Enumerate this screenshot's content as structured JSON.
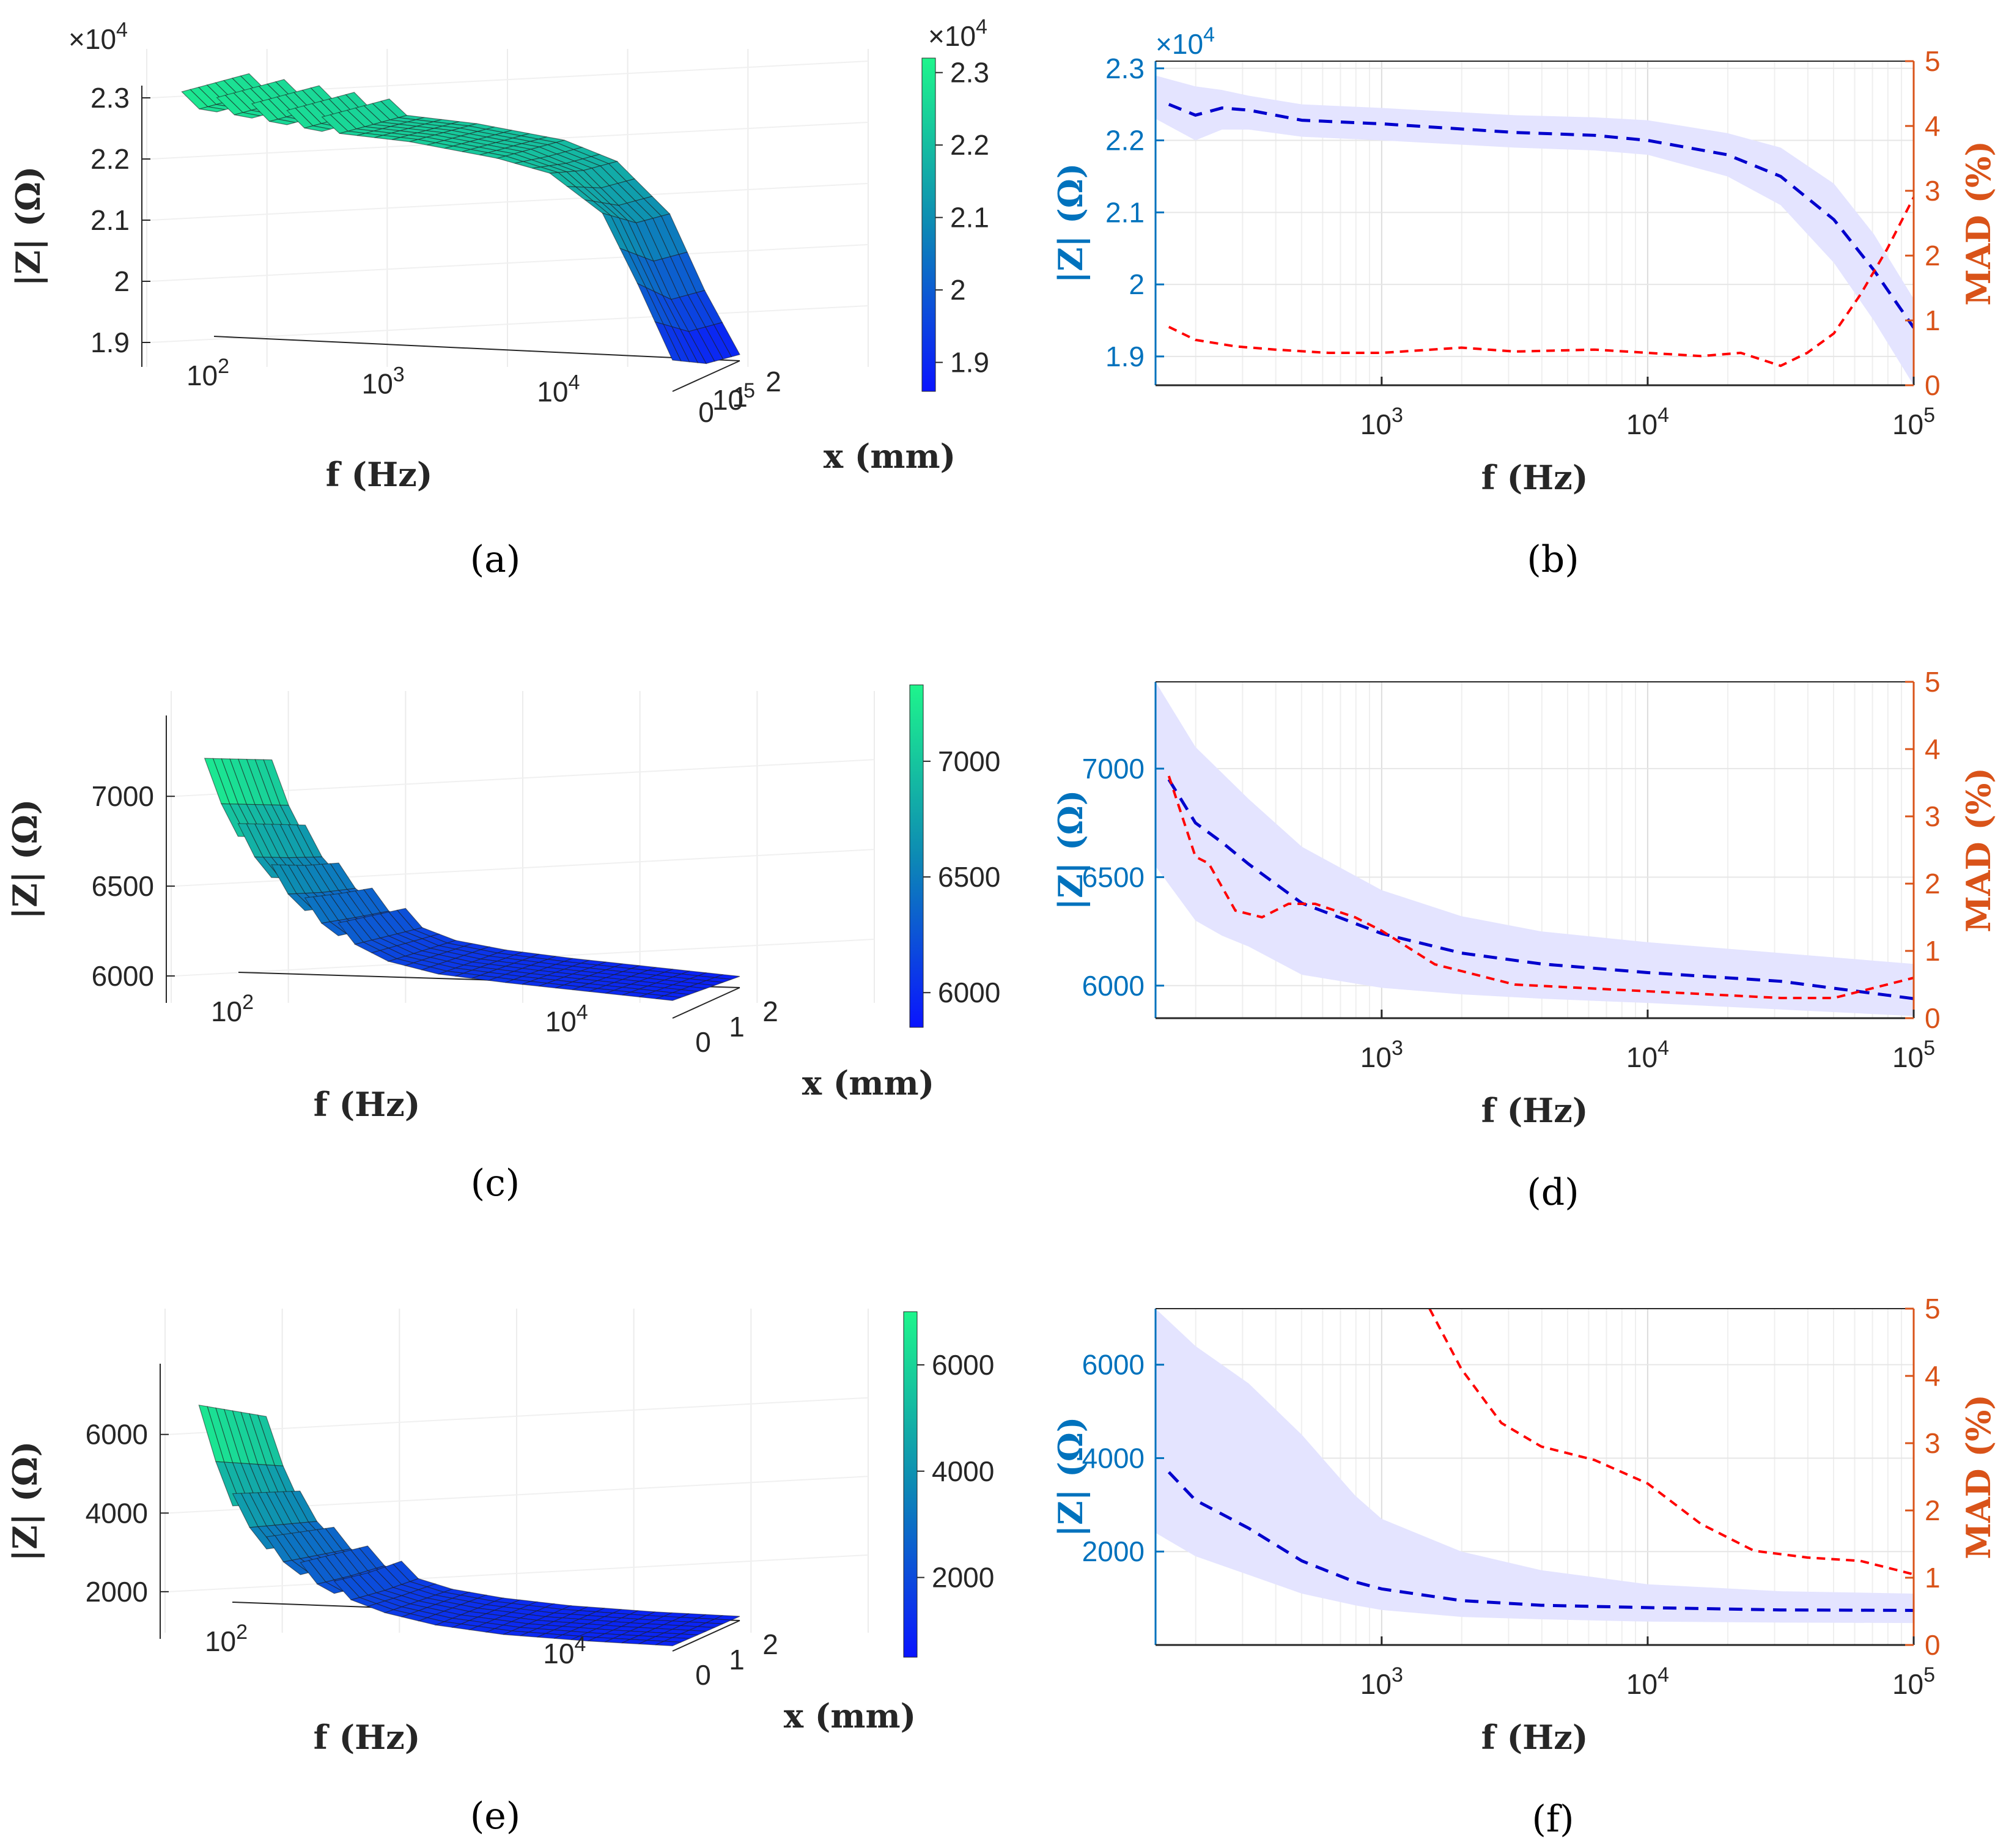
{
  "chart_data": [
    {
      "id": "a",
      "type": "surface",
      "panel_label": "(a)",
      "xlabel": "f (Hz)",
      "ylabel": "x (mm)",
      "zlabel": "|Z| (Ω)",
      "z_exponent": "×10^4",
      "x_ticks": [
        "10^2",
        "10^3",
        "10^4",
        "10^5"
      ],
      "y_ticks": [
        "0",
        "1",
        "2"
      ],
      "z_ticks": [
        "1.9",
        "2",
        "2.1",
        "2.2",
        "2.3"
      ],
      "zlim": [
        1.86,
        2.32
      ],
      "colorbar": {
        "ticks": [
          "1.9",
          "2",
          "2.1",
          "2.2",
          "2.3"
        ],
        "exponent": "×10^4",
        "range": [
          1.86,
          2.32
        ]
      },
      "profiles": [
        {
          "x_mm": 0,
          "logf": [
            2.2,
            2.5,
            3,
            3.5,
            4,
            4.3,
            4.6,
            4.8,
            5
          ],
          "z": [
            2.28,
            2.27,
            2.25,
            2.24,
            2.22,
            2.2,
            2.14,
            2.03,
            1.91
          ]
        },
        {
          "x_mm": 1,
          "logf": [
            2.2,
            2.5,
            3,
            3.5,
            4,
            4.3,
            4.6,
            4.8,
            5
          ],
          "z": [
            2.27,
            2.26,
            2.24,
            2.23,
            2.21,
            2.18,
            2.1,
            1.98,
            1.88
          ]
        },
        {
          "x_mm": 2,
          "logf": [
            2.2,
            2.5,
            3,
            3.5,
            4,
            4.3,
            4.6,
            4.8,
            5
          ],
          "z": [
            2.26,
            2.25,
            2.23,
            2.22,
            2.2,
            2.17,
            2.09,
            1.97,
            1.87
          ]
        }
      ]
    },
    {
      "id": "b",
      "type": "line",
      "panel_label": "(b)",
      "xlabel": "f (Hz)",
      "ylabel_left": "|Z| (Ω)",
      "ylabel_right": "MAD (%)",
      "y_exponent": "×10^4",
      "x_ticks": [
        "10^3",
        "10^4",
        "10^5"
      ],
      "y_ticks_left": [
        "1.9",
        "2",
        "2.1",
        "2.2",
        "2.3"
      ],
      "y_ticks_right": [
        "0",
        "1",
        "2",
        "3",
        "4",
        "5"
      ],
      "xlim_log10": [
        2.15,
        5
      ],
      "ylim_left": [
        1.86,
        2.31
      ],
      "ylim_right": [
        0,
        5
      ],
      "series": [
        {
          "name": "mean |Z|",
          "axis": "left",
          "style": "dashed",
          "color": "#0000cd",
          "logf": [
            2.2,
            2.3,
            2.4,
            2.5,
            2.7,
            3,
            3.5,
            3.8,
            4,
            4.3,
            4.5,
            4.7,
            4.85,
            5
          ],
          "values": [
            2.25,
            2.235,
            2.245,
            2.242,
            2.228,
            2.223,
            2.211,
            2.207,
            2.2,
            2.18,
            2.15,
            2.09,
            2.02,
            1.94
          ]
        },
        {
          "name": "|Z| band upper",
          "axis": "left",
          "style": "band",
          "color": "#e5e5ff",
          "logf": [
            2.15,
            2.3,
            2.4,
            2.5,
            2.7,
            3,
            3.5,
            3.8,
            4,
            4.3,
            4.5,
            4.7,
            4.85,
            5
          ],
          "values": [
            2.29,
            2.275,
            2.27,
            2.262,
            2.25,
            2.245,
            2.235,
            2.232,
            2.228,
            2.21,
            2.19,
            2.14,
            2.07,
            1.98
          ]
        },
        {
          "name": "|Z| band lower",
          "axis": "left",
          "style": "band",
          "color": "#e5e5ff",
          "logf": [
            2.15,
            2.3,
            2.4,
            2.5,
            2.7,
            3,
            3.5,
            3.8,
            4,
            4.3,
            4.5,
            4.7,
            4.85,
            5
          ],
          "values": [
            2.23,
            2.2,
            2.215,
            2.215,
            2.205,
            2.2,
            2.19,
            2.186,
            2.18,
            2.15,
            2.11,
            2.03,
            1.95,
            1.86
          ]
        },
        {
          "name": "MAD",
          "axis": "right",
          "style": "dashed",
          "color": "#ff0000",
          "logf": [
            2.2,
            2.3,
            2.45,
            2.6,
            2.8,
            3,
            3.3,
            3.5,
            3.8,
            4,
            4.2,
            4.35,
            4.5,
            4.6,
            4.7,
            4.8,
            4.9,
            5
          ],
          "values": [
            0.9,
            0.7,
            0.6,
            0.55,
            0.5,
            0.5,
            0.58,
            0.52,
            0.55,
            0.5,
            0.45,
            0.5,
            0.3,
            0.5,
            0.8,
            1.4,
            2.1,
            2.9
          ]
        }
      ]
    },
    {
      "id": "c",
      "type": "surface",
      "panel_label": "(c)",
      "xlabel": "f (Hz)",
      "ylabel": "x (mm)",
      "zlabel": "|Z| (Ω)",
      "x_ticks": [
        "10^2",
        "10^4"
      ],
      "y_ticks": [
        "0",
        "1",
        "2"
      ],
      "z_ticks": [
        "6000",
        "6500",
        "7000"
      ],
      "zlim": [
        5850,
        7450
      ],
      "colorbar": {
        "ticks": [
          "6000",
          "6500",
          "7000"
        ],
        "range": [
          5850,
          7330
        ]
      },
      "profiles": [
        {
          "x_mm": 0,
          "logf": [
            2.2,
            2.4,
            2.6,
            2.8,
            3,
            3.3,
            3.6,
            4,
            4.5,
            5
          ],
          "z": [
            7300,
            6900,
            6650,
            6450,
            6300,
            6150,
            6080,
            6040,
            6000,
            5960
          ]
        },
        {
          "x_mm": 1,
          "logf": [
            2.2,
            2.4,
            2.6,
            2.8,
            3,
            3.3,
            3.6,
            4,
            4.5,
            5
          ],
          "z": [
            7200,
            6800,
            6550,
            6380,
            6250,
            6120,
            6060,
            6020,
            5980,
            5940
          ]
        },
        {
          "x_mm": 2,
          "logf": [
            2.2,
            2.4,
            2.6,
            2.8,
            3,
            3.3,
            3.6,
            4,
            4.5,
            5
          ],
          "z": [
            7100,
            6700,
            6470,
            6320,
            6200,
            6090,
            6040,
            6000,
            5960,
            5920
          ]
        }
      ]
    },
    {
      "id": "d",
      "type": "line",
      "panel_label": "(d)",
      "xlabel": "f (Hz)",
      "ylabel_left": "|Z| (Ω)",
      "ylabel_right": "MAD (%)",
      "x_ticks": [
        "10^3",
        "10^4",
        "10^5"
      ],
      "y_ticks_left": [
        "6000",
        "6500",
        "7000"
      ],
      "y_ticks_right": [
        "0",
        "1",
        "2",
        "3",
        "4",
        "5"
      ],
      "xlim_log10": [
        2.15,
        5
      ],
      "ylim_left": [
        5850,
        7400
      ],
      "ylim_right": [
        0,
        5
      ],
      "series": [
        {
          "name": "mean |Z|",
          "axis": "left",
          "style": "dashed",
          "color": "#0000cd",
          "logf": [
            2.2,
            2.3,
            2.4,
            2.5,
            2.7,
            3,
            3.3,
            3.6,
            4,
            4.5,
            5
          ],
          "values": [
            6950,
            6750,
            6660,
            6560,
            6380,
            6240,
            6150,
            6100,
            6060,
            6020,
            5940
          ]
        },
        {
          "name": "|Z| band upper",
          "axis": "left",
          "style": "band",
          "color": "#e5e5ff",
          "logf": [
            2.15,
            2.3,
            2.4,
            2.5,
            2.7,
            3,
            3.3,
            3.6,
            4,
            4.5,
            5
          ],
          "values": [
            7400,
            7100,
            6980,
            6860,
            6640,
            6440,
            6320,
            6250,
            6200,
            6150,
            6100
          ]
        },
        {
          "name": "|Z| band lower",
          "axis": "left",
          "style": "band",
          "color": "#e5e5ff",
          "logf": [
            2.15,
            2.3,
            2.4,
            2.5,
            2.7,
            3,
            3.3,
            3.6,
            4,
            4.5,
            5
          ],
          "values": [
            6550,
            6300,
            6230,
            6180,
            6050,
            5990,
            5960,
            5940,
            5920,
            5890,
            5860
          ]
        },
        {
          "name": "MAD",
          "axis": "right",
          "style": "dashed",
          "color": "#ff0000",
          "logf": [
            2.2,
            2.3,
            2.35,
            2.45,
            2.55,
            2.65,
            2.75,
            2.9,
            3,
            3.2,
            3.5,
            4,
            4.5,
            4.7,
            5
          ],
          "values": [
            3.6,
            2.4,
            2.3,
            1.6,
            1.5,
            1.7,
            1.7,
            1.5,
            1.3,
            0.8,
            0.5,
            0.4,
            0.3,
            0.3,
            0.6
          ]
        }
      ]
    },
    {
      "id": "e",
      "type": "surface",
      "panel_label": "(e)",
      "xlabel": "f (Hz)",
      "ylabel": "x (mm)",
      "zlabel": "|Z| (Ω)",
      "x_ticks": [
        "10^2",
        "10^4"
      ],
      "y_ticks": [
        "0",
        "1",
        "2"
      ],
      "z_ticks": [
        "2000",
        "4000",
        "6000"
      ],
      "zlim": [
        800,
        7800
      ],
      "colorbar": {
        "ticks": [
          "2000",
          "4000",
          "6000"
        ],
        "range": [
          500,
          7000
        ]
      },
      "profiles": [
        {
          "x_mm": 0,
          "logf": [
            2.2,
            2.4,
            2.6,
            2.8,
            3,
            3.3,
            3.6,
            4,
            4.5,
            5
          ],
          "z": [
            7000,
            4500,
            3300,
            2600,
            2100,
            1600,
            1300,
            1100,
            1000,
            950
          ]
        },
        {
          "x_mm": 1,
          "logf": [
            2.2,
            2.4,
            2.6,
            2.8,
            3,
            3.3,
            3.6,
            4,
            4.5,
            5
          ],
          "z": [
            6400,
            4100,
            3000,
            2400,
            1900,
            1500,
            1250,
            1070,
            980,
            930
          ]
        },
        {
          "x_mm": 2,
          "logf": [
            2.2,
            2.4,
            2.6,
            2.8,
            3,
            3.3,
            3.6,
            4,
            4.5,
            5
          ],
          "z": [
            5800,
            3700,
            2700,
            2200,
            1800,
            1400,
            1200,
            1050,
            960,
            920
          ]
        }
      ]
    },
    {
      "id": "f",
      "type": "line",
      "panel_label": "(f)",
      "xlabel": "f (Hz)",
      "ylabel_left": "|Z| (Ω)",
      "ylabel_right": "MAD (%)",
      "x_ticks": [
        "10^3",
        "10^4",
        "10^5"
      ],
      "y_ticks_left": [
        "2000",
        "4000",
        "6000"
      ],
      "y_ticks_right": [
        "0",
        "1",
        "2",
        "3",
        "4",
        "5"
      ],
      "xlim_log10": [
        2.15,
        5
      ],
      "ylim_left": [
        0,
        7200
      ],
      "ylim_right": [
        0,
        5
      ],
      "series": [
        {
          "name": "mean |Z|",
          "axis": "left",
          "style": "dashed",
          "color": "#0000cd",
          "logf": [
            2.2,
            2.3,
            2.5,
            2.7,
            2.9,
            3,
            3.3,
            3.6,
            4,
            4.5,
            5
          ],
          "values": [
            3700,
            3100,
            2500,
            1800,
            1350,
            1200,
            950,
            850,
            800,
            750,
            740
          ]
        },
        {
          "name": "|Z| band upper",
          "axis": "left",
          "style": "band",
          "color": "#e5e5ff",
          "logf": [
            2.15,
            2.3,
            2.5,
            2.7,
            2.9,
            3,
            3.3,
            3.6,
            4,
            4.5,
            5
          ],
          "values": [
            7200,
            6400,
            5600,
            4500,
            3200,
            2700,
            2000,
            1600,
            1300,
            1150,
            1100
          ]
        },
        {
          "name": "|Z| band lower",
          "axis": "left",
          "style": "band",
          "color": "#e5e5ff",
          "logf": [
            2.15,
            2.3,
            2.5,
            2.7,
            2.9,
            3,
            3.3,
            3.6,
            4,
            4.5,
            5
          ],
          "values": [
            2400,
            1900,
            1500,
            1100,
            850,
            750,
            600,
            550,
            500,
            480,
            470
          ]
        },
        {
          "name": "MAD",
          "axis": "right",
          "style": "dashed",
          "color": "#ff0000",
          "logf": [
            3.18,
            3.3,
            3.45,
            3.6,
            3.8,
            4,
            4.2,
            4.4,
            4.6,
            4.8,
            5
          ],
          "values": [
            5,
            4.1,
            3.3,
            2.95,
            2.75,
            2.4,
            1.8,
            1.4,
            1.3,
            1.25,
            1.05
          ]
        }
      ]
    }
  ]
}
